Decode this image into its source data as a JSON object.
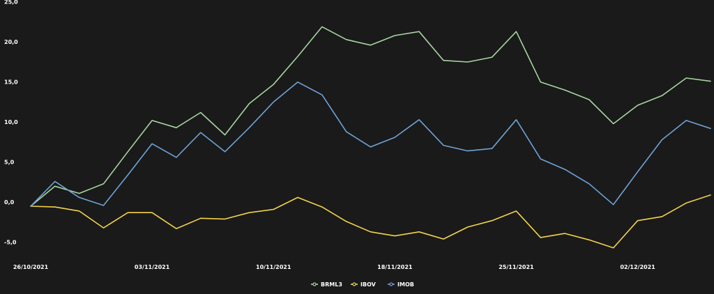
{
  "chart_data": {
    "type": "line",
    "x": [
      "26/10/2021",
      "27/10/2021",
      "28/10/2021",
      "29/10/2021",
      "01/11/2021",
      "03/11/2021",
      "04/11/2021",
      "05/11/2021",
      "08/11/2021",
      "09/11/2021",
      "10/11/2021",
      "11/11/2021",
      "12/11/2021",
      "16/11/2021",
      "17/11/2021",
      "18/11/2021",
      "19/11/2021",
      "22/11/2021",
      "23/11/2021",
      "24/11/2021",
      "25/11/2021",
      "26/11/2021",
      "29/11/2021",
      "30/11/2021",
      "01/12/2021",
      "02/12/2021",
      "03/12/2021",
      "06/12/2021",
      "07/12/2021"
    ],
    "x_ticks": [
      "26/10/2021",
      "03/11/2021",
      "10/11/2021",
      "18/11/2021",
      "25/11/2021",
      "02/12/2021"
    ],
    "y_ticks": [
      "25,0",
      "20,0",
      "15,0",
      "10,0",
      "5,0",
      "0,0",
      "-5,0"
    ],
    "ylim": [
      -7,
      25
    ],
    "grid": false,
    "legend_position": "bottom-center",
    "series": [
      {
        "name": "BRML3",
        "color": "#a8d5a2",
        "values": [
          0,
          2.5,
          1.6,
          2.8,
          6.8,
          10.7,
          9.8,
          11.7,
          8.9,
          12.8,
          15.2,
          18.7,
          22.4,
          20.8,
          20.1,
          21.3,
          21.8,
          18.2,
          18.0,
          18.6,
          21.8,
          15.5,
          14.5,
          13.3,
          10.3,
          12.6,
          13.8,
          16.0,
          15.6
        ]
      },
      {
        "name": "IBOV",
        "color": "#f2d34a",
        "values": [
          0,
          -0.1,
          -0.6,
          -2.7,
          -0.8,
          -0.8,
          -2.8,
          -1.5,
          -1.6,
          -0.8,
          -0.4,
          1.1,
          -0.1,
          -1.9,
          -3.2,
          -3.7,
          -3.2,
          -4.1,
          -2.6,
          -1.8,
          -0.6,
          -3.9,
          -3.4,
          -4.2,
          -5.2,
          -1.8,
          -1.3,
          0.4,
          1.4
        ]
      },
      {
        "name": "IMOB",
        "color": "#6fa3d8",
        "values": [
          0,
          3.1,
          1.1,
          0.1,
          3.9,
          7.8,
          6.1,
          9.2,
          6.8,
          9.8,
          13.0,
          15.5,
          13.9,
          9.3,
          7.4,
          8.6,
          10.8,
          7.6,
          6.9,
          7.2,
          10.8,
          5.9,
          4.6,
          2.8,
          0.2,
          4.3,
          8.3,
          10.7,
          9.7
        ]
      }
    ]
  }
}
